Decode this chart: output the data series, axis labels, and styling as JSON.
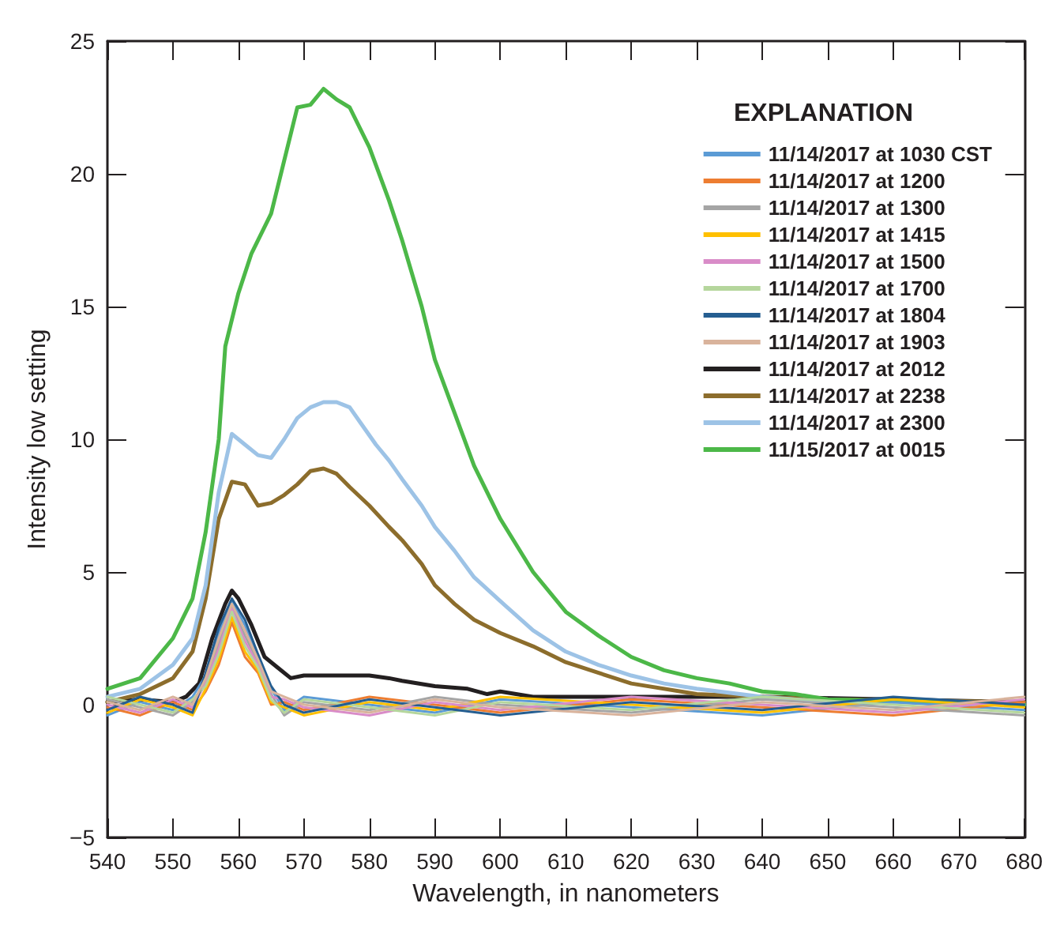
{
  "chart_data": {
    "type": "line",
    "xlabel": "Wavelength, in nanometers",
    "ylabel": "Intensity low setting",
    "legend_title": "EXPLANATION",
    "legend": "top right",
    "grid": false,
    "marker": "none",
    "line_style": "solid",
    "xlim": [
      540,
      680
    ],
    "xticks": [
      540,
      550,
      560,
      570,
      580,
      590,
      600,
      610,
      620,
      630,
      640,
      650,
      660,
      670,
      680
    ],
    "ylim": [
      -5,
      25
    ],
    "yticks": [
      {
        "value": -5,
        "label": "−5"
      },
      0,
      5,
      10,
      15,
      20,
      25
    ],
    "x": [
      540,
      545,
      550,
      553,
      555,
      557,
      559,
      561,
      563,
      565,
      567,
      570,
      580,
      590,
      600,
      620,
      640,
      660,
      680
    ],
    "series": [
      {
        "name": "11/14/2017 at 1030 CST",
        "color": "#5b9bd5",
        "values": [
          -0.4,
          0.1,
          -0.2,
          0.3,
          1.1,
          2.7,
          3.9,
          3.0,
          1.8,
          0.6,
          -0.2,
          0.3,
          0,
          -0.3,
          0.2,
          -0.1,
          -0.4,
          0.1,
          -0.2
        ]
      },
      {
        "name": "11/14/2017 at 1200",
        "color": "#ed7d31",
        "values": [
          -0.1,
          -0.4,
          0.1,
          -0.2,
          0.5,
          1.5,
          3.1,
          1.8,
          1.2,
          0.0,
          0.1,
          -0.2,
          0.3,
          0,
          -0.3,
          0.2,
          -0.1,
          -0.4,
          0.1
        ]
      },
      {
        "name": "11/14/2017 at 1300",
        "color": "#a5a5a5",
        "values": [
          0.2,
          -0.1,
          -0.4,
          0.1,
          0.9,
          2.3,
          3.7,
          2.6,
          1.6,
          0.4,
          -0.4,
          0.1,
          -0.2,
          0.3,
          0,
          -0.3,
          0.2,
          -0.1,
          -0.4
        ]
      },
      {
        "name": "11/14/2017 at 1415",
        "color": "#ffc000",
        "values": [
          -0.3,
          0.2,
          -0.1,
          -0.4,
          0.6,
          1.7,
          3.3,
          2.0,
          1.3,
          0.1,
          -0.1,
          -0.4,
          0.1,
          -0.2,
          0.3,
          0,
          -0.3,
          0.2,
          -0.1
        ]
      },
      {
        "name": "11/14/2017 at 1500",
        "color": "#d98cc8",
        "values": [
          0,
          -0.3,
          0.2,
          -0.1,
          0.8,
          2.1,
          3.6,
          2.4,
          1.5,
          0.3,
          0.2,
          -0.1,
          -0.4,
          0.1,
          -0.2,
          0.3,
          0,
          -0.3,
          0.2
        ]
      },
      {
        "name": "11/14/2017 at 1700",
        "color": "#b5d69c",
        "values": [
          0.3,
          0,
          -0.3,
          0.2,
          0.7,
          1.9,
          3.5,
          2.2,
          1.4,
          0.2,
          -0.3,
          0.2,
          -0.1,
          -0.4,
          0.1,
          -0.2,
          0.3,
          0,
          -0.3
        ]
      },
      {
        "name": "11/14/2017 at 1804",
        "color": "#255e91",
        "values": [
          -0.2,
          0.3,
          0,
          -0.3,
          1.2,
          2.9,
          4.0,
          3.2,
          1.9,
          0.7,
          0,
          -0.3,
          0.2,
          -0.1,
          -0.4,
          0.1,
          -0.2,
          0.3,
          0
        ]
      },
      {
        "name": "11/14/2017 at 1903",
        "color": "#d9b39c",
        "values": [
          0.1,
          -0.2,
          0.3,
          0,
          1.0,
          2.5,
          3.8,
          2.8,
          1.7,
          0.5,
          0.3,
          0,
          -0.3,
          0.2,
          -0.1,
          -0.4,
          0.1,
          -0.2,
          0.3
        ]
      },
      {
        "name": "11/14/2017 at 2012",
        "color": "#231f20",
        "x": [
          540,
          545,
          550,
          552,
          554,
          556,
          558,
          559,
          560,
          562,
          564,
          566,
          568,
          570,
          575,
          580,
          583,
          585,
          590,
          595,
          598,
          600,
          605,
          620,
          640,
          660,
          680
        ],
        "values": [
          0.1,
          0.2,
          0.1,
          0.3,
          0.8,
          2.5,
          3.8,
          4.3,
          4.0,
          3.0,
          1.8,
          1.4,
          1.0,
          1.1,
          1.1,
          1.1,
          1.0,
          0.9,
          0.7,
          0.6,
          0.4,
          0.5,
          0.3,
          0.3,
          0.3,
          0.2,
          0.1
        ]
      },
      {
        "name": "11/14/2017 at 2238",
        "color": "#8c6d2c",
        "x": [
          540,
          545,
          550,
          553,
          555,
          557,
          559,
          561,
          563,
          565,
          567,
          569,
          571,
          573,
          575,
          577,
          580,
          583,
          585,
          588,
          590,
          593,
          596,
          600,
          605,
          610,
          615,
          620,
          630,
          640,
          650,
          680
        ],
        "values": [
          0.1,
          0.4,
          1.0,
          2.0,
          4.0,
          7.0,
          8.4,
          8.3,
          7.5,
          7.6,
          7.9,
          8.3,
          8.8,
          8.9,
          8.7,
          8.2,
          7.5,
          6.7,
          6.2,
          5.3,
          4.5,
          3.8,
          3.2,
          2.7,
          2.2,
          1.6,
          1.2,
          0.8,
          0.4,
          0.3,
          0.2,
          0.1
        ]
      },
      {
        "name": "11/14/2017 at 2300",
        "color": "#9dc3e6",
        "x": [
          540,
          545,
          550,
          553,
          555,
          557,
          559,
          561,
          563,
          565,
          567,
          569,
          571,
          573,
          575,
          577,
          579,
          581,
          583,
          585,
          588,
          590,
          593,
          596,
          600,
          605,
          610,
          615,
          620,
          625,
          630,
          640,
          650,
          660,
          680
        ],
        "values": [
          0.3,
          0.6,
          1.5,
          2.5,
          4.5,
          8.0,
          10.2,
          9.8,
          9.4,
          9.3,
          10.0,
          10.8,
          11.2,
          11.4,
          11.4,
          11.2,
          10.5,
          9.8,
          9.2,
          8.5,
          7.5,
          6.7,
          5.8,
          4.8,
          3.9,
          2.8,
          2.0,
          1.5,
          1.1,
          0.8,
          0.6,
          0.3,
          0.1,
          0.1,
          0
        ]
      },
      {
        "name": "11/15/2017 at 0015",
        "color": "#4cb848",
        "x": [
          540,
          545,
          550,
          553,
          555,
          557,
          558,
          560,
          562,
          565,
          567,
          569,
          571,
          573,
          575,
          577,
          580,
          583,
          585,
          588,
          590,
          593,
          596,
          600,
          605,
          610,
          615,
          620,
          625,
          630,
          635,
          640,
          645,
          650,
          660,
          670,
          680
        ],
        "values": [
          0.6,
          1.0,
          2.5,
          4.0,
          6.5,
          10.0,
          13.5,
          15.5,
          17.0,
          18.5,
          20.5,
          22.5,
          22.6,
          23.2,
          22.8,
          22.5,
          21.0,
          19.0,
          17.5,
          15.0,
          13.0,
          11.0,
          9.0,
          7.0,
          5.0,
          3.5,
          2.6,
          1.8,
          1.3,
          1.0,
          0.8,
          0.5,
          0.4,
          0.2,
          0.15,
          0.1,
          0
        ]
      }
    ]
  }
}
